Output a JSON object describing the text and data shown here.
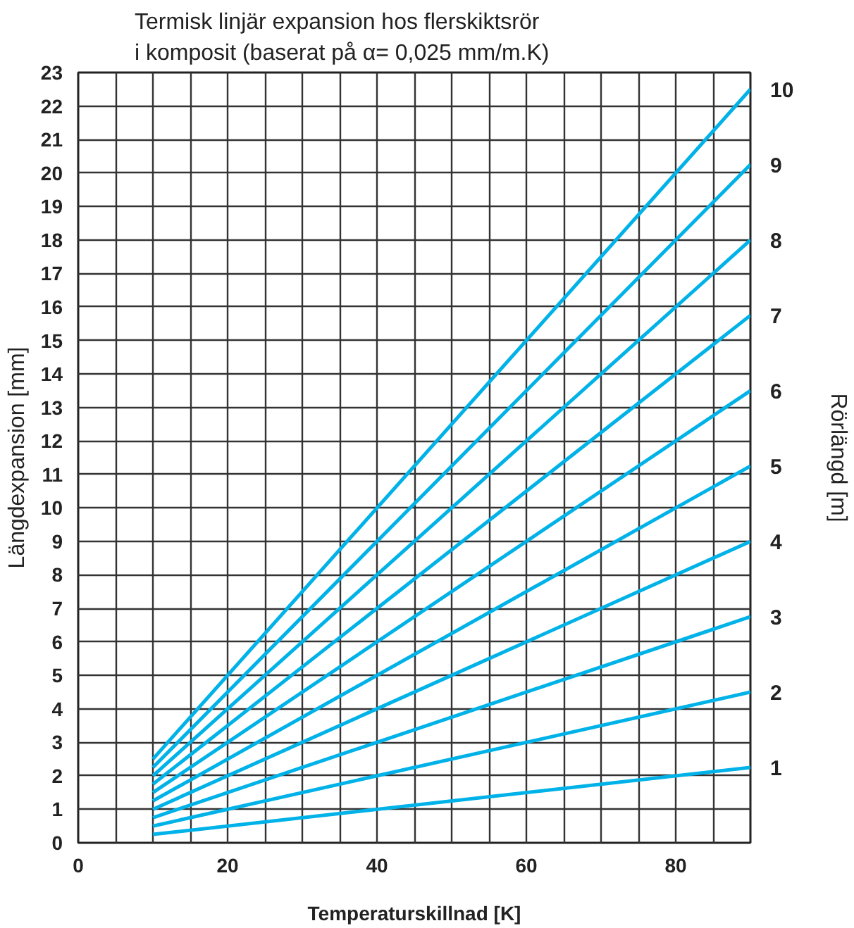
{
  "chart_data": {
    "type": "line",
    "title": "Termisk linjär expansion hos flerskiktsrör i komposit (baserat på α= 0,025 mm/m.K)",
    "xlabel": "Temperaturskillnad [K]",
    "ylabel": "Längdexpansion [mm]",
    "y2label": "Rörlängd [m]",
    "x": [
      10,
      90
    ],
    "series": [
      {
        "name": "1",
        "color": "#00b2e8",
        "values": [
          0.25,
          2.25
        ]
      },
      {
        "name": "2",
        "color": "#00b2e8",
        "values": [
          0.5,
          4.5
        ]
      },
      {
        "name": "3",
        "color": "#00b2e8",
        "values": [
          0.75,
          6.75
        ]
      },
      {
        "name": "4",
        "color": "#00b2e8",
        "values": [
          1.0,
          9.0
        ]
      },
      {
        "name": "5",
        "color": "#00b2e8",
        "values": [
          1.25,
          11.25
        ]
      },
      {
        "name": "6",
        "color": "#00b2e8",
        "values": [
          1.5,
          13.5
        ]
      },
      {
        "name": "7",
        "color": "#00b2e8",
        "values": [
          1.75,
          15.75
        ]
      },
      {
        "name": "8",
        "color": "#00b2e8",
        "values": [
          2.0,
          18.0
        ]
      },
      {
        "name": "9",
        "color": "#00b2e8",
        "values": [
          2.25,
          20.25
        ]
      },
      {
        "name": "10",
        "color": "#00b2e8",
        "values": [
          2.5,
          22.5
        ]
      }
    ],
    "xlim": [
      0,
      90
    ],
    "xticks": [
      0,
      {
        "value": 5,
        "label": null
      },
      {
        "value": 10,
        "label": null
      },
      {
        "value": 15,
        "label": null
      },
      20,
      {
        "value": 25,
        "label": null
      },
      {
        "value": 30,
        "label": null
      },
      {
        "value": 35,
        "label": null
      },
      40,
      {
        "value": 45,
        "label": null
      },
      {
        "value": 50,
        "label": null
      },
      {
        "value": 55,
        "label": null
      },
      60,
      {
        "value": 65,
        "label": null
      },
      {
        "value": 70,
        "label": null
      },
      {
        "value": 75,
        "label": null
      },
      80,
      {
        "value": 85,
        "label": null
      },
      {
        "value": 90,
        "label": null
      }
    ],
    "ylim": [
      0,
      23
    ],
    "yticks": [
      0,
      1,
      2,
      3,
      4,
      5,
      6,
      7,
      8,
      9,
      10,
      11,
      12,
      13,
      14,
      15,
      16,
      17,
      18,
      19,
      20,
      21,
      22,
      23
    ],
    "grid": true,
    "marker": "none",
    "line_style": "solid"
  }
}
